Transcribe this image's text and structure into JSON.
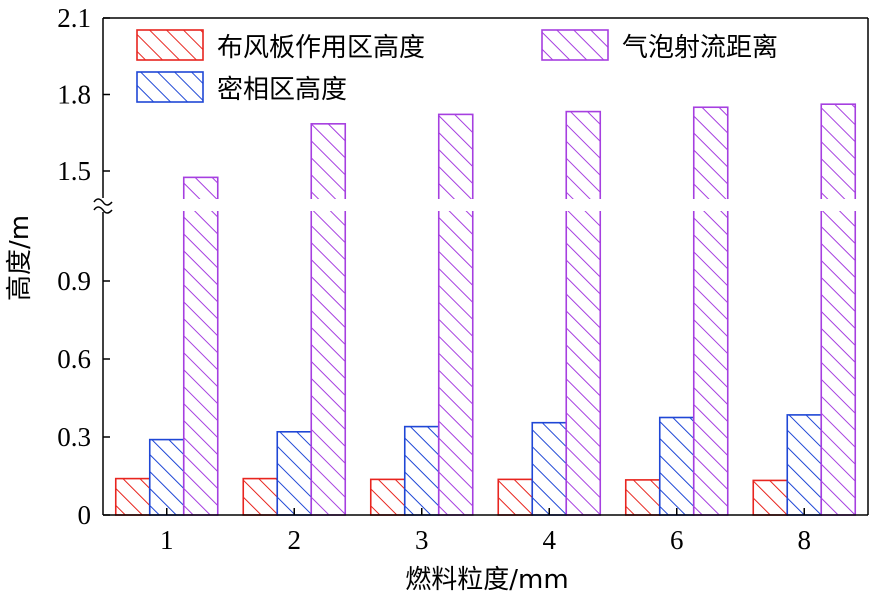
{
  "chart_data": {
    "type": "bar",
    "title": "",
    "xlabel": "燃料粒度/mm",
    "ylabel": "高度/m",
    "categories": [
      "1",
      "2",
      "3",
      "4",
      "6",
      "8"
    ],
    "y_ticks_lower": [
      "0",
      "0.3",
      "0.6",
      "0.9"
    ],
    "y_ticks_upper": [
      "1.5",
      "1.8",
      "2.1"
    ],
    "ylim": [
      0,
      2.1
    ],
    "axis_break": [
      1.2,
      1.35
    ],
    "grid": false,
    "legend_position": "top",
    "hatch": "diagonal",
    "series": [
      {
        "name": "布风板作用区高度",
        "color": "#e8251f",
        "values": [
          0.14,
          0.14,
          0.137,
          0.137,
          0.135,
          0.133
        ]
      },
      {
        "name": "密相区高度",
        "color": "#1f47d6",
        "values": [
          0.29,
          0.32,
          0.34,
          0.355,
          0.375,
          0.385
        ]
      },
      {
        "name": "气泡射流距离",
        "color": "#a63fe0",
        "values": [
          1.475,
          1.685,
          1.722,
          1.733,
          1.75,
          1.762
        ]
      }
    ]
  }
}
